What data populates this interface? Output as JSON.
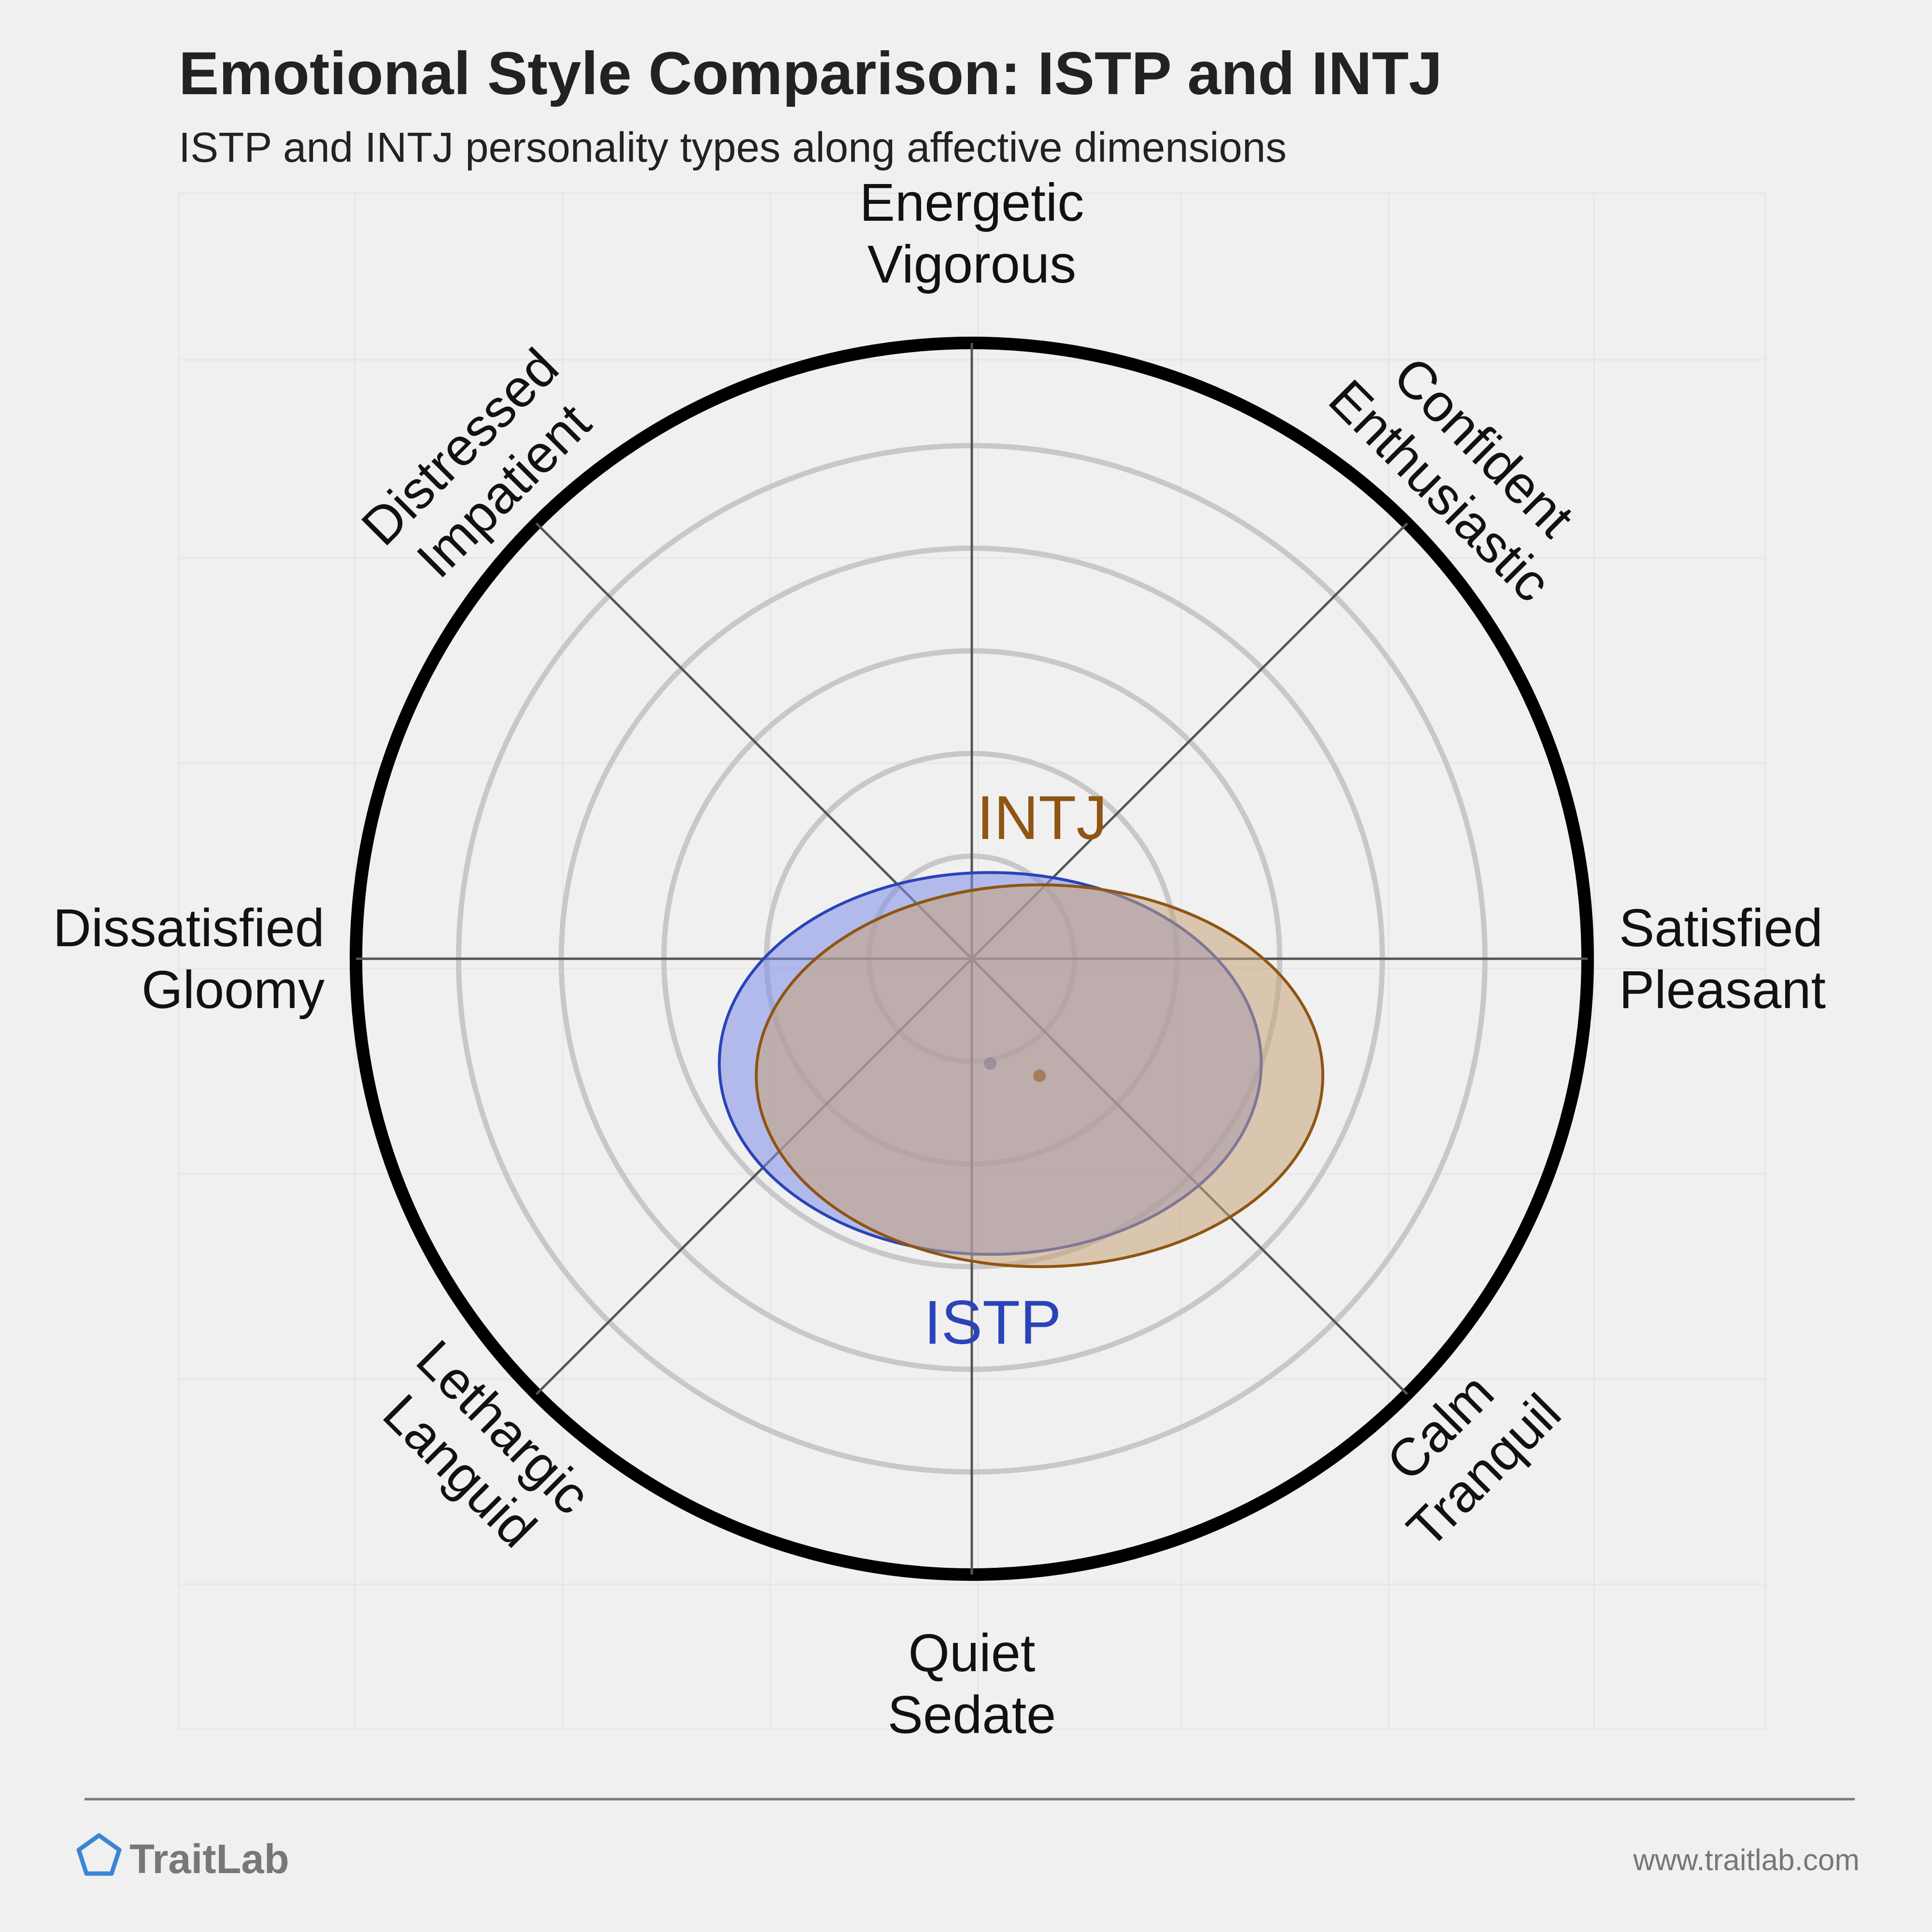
{
  "header": {
    "title": "Emotional Style Comparison: ISTP and INTJ",
    "subtitle": "ISTP and INTJ personality types along affective dimensions"
  },
  "chart_data": {
    "type": "scatter",
    "axes": [
      {
        "angle": 90,
        "lines": [
          "Energetic",
          "Vigorous"
        ]
      },
      {
        "angle": 45,
        "lines": [
          "Confident",
          "Enthusiastic"
        ]
      },
      {
        "angle": 0,
        "lines": [
          "Satisfied",
          "Pleasant"
        ]
      },
      {
        "angle": -45,
        "lines": [
          "Tranquil",
          "Calm"
        ]
      },
      {
        "angle": -90,
        "lines": [
          "Quiet",
          "Sedate"
        ]
      },
      {
        "angle": -135,
        "lines": [
          "Languid",
          "Lethargic"
        ]
      },
      {
        "angle": 180,
        "lines": [
          "Dissatisfied",
          "Gloomy"
        ]
      },
      {
        "angle": 135,
        "lines": [
          "Distressed",
          "Impatient"
        ]
      }
    ],
    "range": [
      -1,
      1
    ],
    "rings": 6,
    "series": [
      {
        "name": "ISTP",
        "center": [
          0.03,
          -0.17
        ],
        "spread": [
          0.44,
          0.31
        ],
        "color": "#2a44b8",
        "fill": "#7d8ee8"
      },
      {
        "name": "INTJ",
        "center": [
          0.11,
          -0.19
        ],
        "spread": [
          0.46,
          0.31
        ],
        "color": "#8f5512",
        "fill": "#c9a37a"
      }
    ]
  },
  "footer": {
    "brand": "TraitLab",
    "url": "www.traitlab.com"
  },
  "colors": {
    "background": "#f0f0f0",
    "ring": "#c8c8c8",
    "outer_ring": "#000000",
    "axis_line": "#555555",
    "logo": "#3a86d4"
  }
}
